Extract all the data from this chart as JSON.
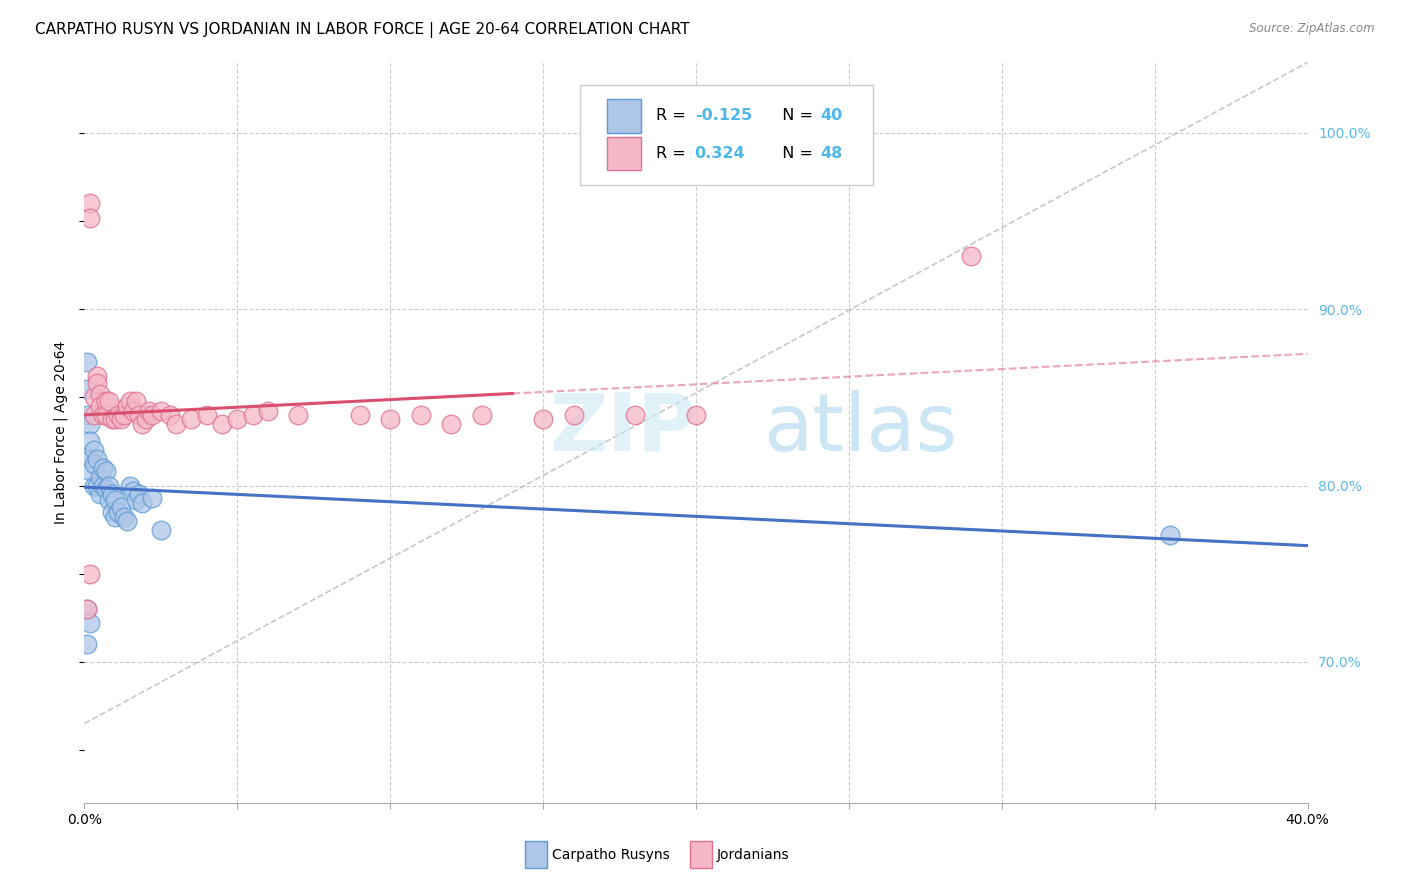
{
  "title": "CARPATHO RUSYN VS JORDANIAN IN LABOR FORCE | AGE 20-64 CORRELATION CHART",
  "source": "Source: ZipAtlas.com",
  "ylabel": "In Labor Force | Age 20-64",
  "xlim": [
    0.0,
    0.4
  ],
  "ylim": [
    0.62,
    1.04
  ],
  "xticks": [
    0.0,
    0.05,
    0.1,
    0.15,
    0.2,
    0.25,
    0.3,
    0.35,
    0.4
  ],
  "yticks": [
    0.7,
    0.8,
    0.9,
    1.0
  ],
  "ytick_labels": [
    "70.0%",
    "80.0%",
    "90.0%",
    "100.0%"
  ],
  "legend_labels": [
    "Carpatho Rusyns",
    "Jordanians"
  ],
  "blue_fill": "#aec6e8",
  "blue_edge": "#5b9bd5",
  "pink_fill": "#f4b8c8",
  "pink_edge": "#e07090",
  "blue_line_color": "#4472c4",
  "pink_line_color": "#d94f6e",
  "right_tick_color": "#5bb8e8",
  "R_blue": -0.125,
  "N_blue": 40,
  "R_pink": 0.324,
  "N_pink": 48,
  "blue_x": [
    0.001,
    0.001,
    0.001,
    0.002,
    0.002,
    0.002,
    0.002,
    0.003,
    0.003,
    0.003,
    0.004,
    0.004,
    0.005,
    0.005,
    0.006,
    0.006,
    0.007,
    0.007,
    0.008,
    0.008,
    0.009,
    0.009,
    0.01,
    0.01,
    0.011,
    0.012,
    0.013,
    0.014,
    0.015,
    0.016,
    0.017,
    0.018,
    0.019,
    0.02,
    0.022,
    0.025,
    0.001,
    0.002,
    0.001,
    0.355
  ],
  "blue_y": [
    0.87,
    0.855,
    0.84,
    0.835,
    0.825,
    0.815,
    0.808,
    0.82,
    0.812,
    0.8,
    0.815,
    0.8,
    0.805,
    0.795,
    0.81,
    0.8,
    0.808,
    0.798,
    0.8,
    0.792,
    0.795,
    0.785,
    0.792,
    0.782,
    0.785,
    0.788,
    0.782,
    0.78,
    0.8,
    0.797,
    0.792,
    0.795,
    0.79,
    0.84,
    0.793,
    0.775,
    0.73,
    0.722,
    0.71,
    0.772
  ],
  "pink_x": [
    0.001,
    0.002,
    0.002,
    0.003,
    0.003,
    0.004,
    0.004,
    0.005,
    0.005,
    0.006,
    0.007,
    0.007,
    0.008,
    0.009,
    0.01,
    0.011,
    0.012,
    0.013,
    0.014,
    0.015,
    0.016,
    0.017,
    0.018,
    0.019,
    0.02,
    0.021,
    0.022,
    0.025,
    0.028,
    0.03,
    0.035,
    0.04,
    0.045,
    0.05,
    0.055,
    0.06,
    0.07,
    0.09,
    0.1,
    0.11,
    0.12,
    0.13,
    0.15,
    0.16,
    0.18,
    0.2,
    0.29,
    0.002
  ],
  "pink_y": [
    0.73,
    0.96,
    0.952,
    0.85,
    0.84,
    0.862,
    0.858,
    0.852,
    0.845,
    0.84,
    0.848,
    0.84,
    0.848,
    0.838,
    0.838,
    0.84,
    0.838,
    0.84,
    0.845,
    0.848,
    0.842,
    0.848,
    0.84,
    0.835,
    0.838,
    0.842,
    0.84,
    0.842,
    0.84,
    0.835,
    0.838,
    0.84,
    0.835,
    0.838,
    0.84,
    0.842,
    0.84,
    0.84,
    0.838,
    0.84,
    0.835,
    0.84,
    0.838,
    0.84,
    0.84,
    0.84,
    0.93,
    0.75
  ],
  "watermark_zip": "ZIP",
  "watermark_atlas": "atlas",
  "background_color": "#ffffff",
  "grid_color": "#cccccc"
}
